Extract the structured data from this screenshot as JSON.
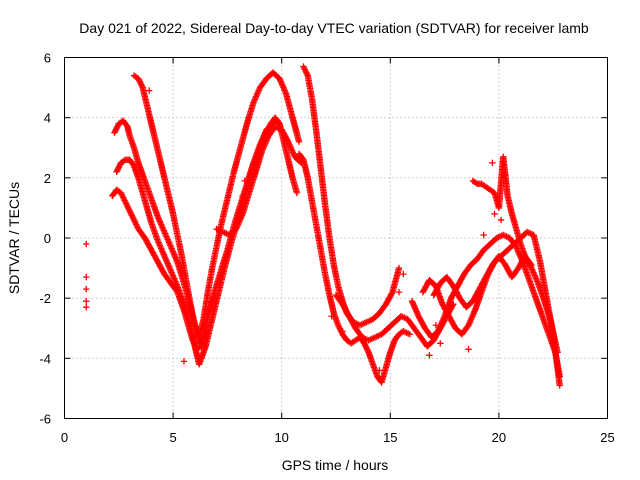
{
  "chart_data": {
    "type": "scatter",
    "title": "Day 021 of 2022, Sidereal Day-to-day VTEC variation (SDTVAR) for receiver lamb",
    "xlabel": "GPS time / hours",
    "ylabel": "SDTVAR / TECUs",
    "xlim": [
      0,
      25
    ],
    "ylim": [
      -6,
      6
    ],
    "xticks": [
      0,
      5,
      10,
      15,
      20,
      25
    ],
    "yticks": [
      -6,
      -4,
      -2,
      0,
      2,
      4,
      6
    ],
    "xtick_labels": [
      "0",
      "5",
      "10",
      "15",
      "20",
      "25"
    ],
    "ytick_labels": [
      "-6",
      "-4",
      "-2",
      "0",
      "2",
      "4",
      "6"
    ],
    "grid": true,
    "marker": "+",
    "series_color": "#ff0000",
    "series": [
      {
        "name": "isolated-points",
        "x": [
          1.0,
          1.0,
          1.0,
          1.0,
          1.0
        ],
        "y": [
          -0.2,
          -1.3,
          -1.7,
          -2.1,
          -2.3
        ]
      },
      {
        "name": "trace-a",
        "x": [
          2.3,
          2.5,
          2.7,
          2.9,
          3.0,
          3.2,
          3.4,
          3.6,
          3.8,
          4.0,
          4.3,
          4.6,
          4.9,
          5.2,
          5.5,
          5.7,
          5.9,
          6.1,
          6.2,
          6.4,
          6.6,
          6.9,
          7.2,
          7.5,
          7.8,
          8.1,
          8.4,
          8.7,
          9.0,
          9.3,
          9.6,
          9.8
        ],
        "y": [
          3.5,
          3.8,
          3.9,
          3.7,
          3.4,
          3.0,
          2.5,
          2.1,
          1.7,
          1.3,
          0.7,
          0.2,
          -0.3,
          -0.8,
          -1.5,
          -2.0,
          -2.6,
          -3.1,
          -3.5,
          -3.3,
          -2.6,
          -1.8,
          -1.1,
          -0.4,
          0.4,
          1.1,
          1.8,
          2.5,
          3.1,
          3.6,
          3.8,
          3.9
        ]
      },
      {
        "name": "trace-b",
        "x": [
          2.4,
          2.6,
          2.8,
          3.0,
          3.2,
          3.4,
          3.6,
          3.8,
          4.0,
          4.3,
          4.6,
          4.9,
          5.2,
          5.5,
          5.8,
          6.0,
          6.2,
          6.5,
          6.8,
          7.1,
          7.4,
          7.7,
          8.0,
          8.3,
          8.6,
          8.9,
          9.2,
          9.5,
          9.7,
          9.9,
          10.1,
          10.3,
          10.5,
          10.7
        ],
        "y": [
          2.2,
          2.5,
          2.6,
          2.6,
          2.4,
          2.0,
          1.5,
          1.0,
          0.5,
          -0.1,
          -0.6,
          -1.1,
          -1.6,
          -2.2,
          -2.9,
          -3.6,
          -4.2,
          -3.6,
          -2.7,
          -1.8,
          -0.9,
          -0.1,
          0.6,
          1.4,
          2.1,
          2.8,
          3.4,
          3.8,
          4.0,
          3.8,
          3.2,
          2.6,
          2.0,
          1.5
        ]
      },
      {
        "name": "trace-c",
        "x": [
          2.2,
          2.4,
          2.6,
          2.8,
          3.0,
          3.2,
          3.4,
          3.7,
          4.0,
          4.3,
          4.6,
          4.9,
          5.2,
          5.5,
          5.7,
          5.9,
          6.1,
          6.3,
          6.5
        ],
        "y": [
          1.4,
          1.6,
          1.5,
          1.2,
          0.9,
          0.6,
          0.3,
          0.0,
          -0.4,
          -0.8,
          -1.2,
          -1.5,
          -1.8,
          -2.4,
          -2.9,
          -3.4,
          -3.7,
          -3.6,
          -3.2
        ]
      },
      {
        "name": "trace-d",
        "x": [
          3.2,
          3.4,
          3.6,
          3.8,
          4.0,
          4.2,
          4.4,
          4.6,
          4.8,
          5.0,
          5.2,
          5.4,
          5.6,
          5.8,
          6.0,
          6.2,
          6.4,
          6.6,
          6.8,
          7.0,
          7.2,
          7.5,
          7.8,
          8.1,
          8.4,
          8.7,
          9.0,
          9.3,
          9.6,
          9.9,
          10.2,
          10.5,
          10.8
        ],
        "y": [
          5.4,
          5.3,
          5.0,
          4.4,
          3.8,
          3.2,
          2.6,
          2.0,
          1.4,
          0.8,
          0.1,
          -0.6,
          -1.4,
          -2.2,
          -2.9,
          -3.3,
          -2.7,
          -1.8,
          -1.0,
          -0.3,
          0.4,
          1.3,
          2.2,
          3.0,
          3.8,
          4.5,
          5.0,
          5.3,
          5.5,
          5.3,
          4.8,
          4.0,
          3.2
        ]
      },
      {
        "name": "trace-e",
        "x": [
          11.0,
          11.2,
          11.4,
          11.6,
          11.8,
          12.0,
          12.2,
          12.4,
          12.6,
          12.8,
          13.0,
          13.3,
          13.6,
          13.9,
          14.2,
          14.5,
          14.8,
          15.1,
          15.4
        ],
        "y": [
          5.7,
          5.4,
          4.6,
          3.5,
          2.3,
          1.1,
          0.0,
          -0.9,
          -1.6,
          -2.1,
          -2.5,
          -2.8,
          -2.9,
          -2.8,
          -2.7,
          -2.5,
          -2.2,
          -1.8,
          -1.0
        ]
      },
      {
        "name": "trace-f",
        "x": [
          10.8,
          11.0,
          11.2,
          11.4,
          11.6,
          11.8,
          12.0,
          12.2,
          12.4,
          12.6,
          12.8,
          13.0,
          13.2,
          13.4,
          13.6,
          13.8,
          14.0,
          14.2,
          14.4,
          14.6,
          14.8,
          15.0,
          15.2,
          15.4,
          15.6,
          15.9
        ],
        "y": [
          2.8,
          2.6,
          2.0,
          1.2,
          0.4,
          -0.4,
          -1.2,
          -1.9,
          -2.5,
          -2.9,
          -3.2,
          -3.4,
          -3.5,
          -3.4,
          -3.3,
          -3.5,
          -3.8,
          -4.2,
          -4.6,
          -4.8,
          -4.3,
          -3.8,
          -3.4,
          -3.2,
          -3.1,
          -3.2
        ]
      },
      {
        "name": "trace-g",
        "x": [
          7.0,
          7.3,
          7.6,
          7.9,
          8.2,
          8.5,
          8.8,
          9.1,
          9.4,
          9.7,
          10.0,
          10.3,
          10.6,
          10.9
        ],
        "y": [
          0.3,
          0.2,
          0.1,
          0.3,
          0.8,
          1.5,
          2.2,
          2.9,
          3.4,
          3.7,
          3.6,
          3.2,
          2.7,
          2.5
        ]
      },
      {
        "name": "trace-h",
        "x": [
          12.5,
          12.8,
          13.1,
          13.4,
          13.7,
          14.0,
          14.3,
          14.6,
          14.9,
          15.2,
          15.5,
          15.8,
          16.1,
          16.4,
          16.7,
          17.0,
          17.3,
          17.6,
          17.9
        ],
        "y": [
          -1.9,
          -2.2,
          -2.6,
          -3.0,
          -3.3,
          -3.4,
          -3.3,
          -3.2,
          -3.0,
          -2.8,
          -2.6,
          -2.7,
          -3.0,
          -3.3,
          -3.6,
          -3.4,
          -3.0,
          -2.6,
          -2.2
        ]
      },
      {
        "name": "trace-i",
        "x": [
          16.0,
          16.3,
          16.6,
          16.9,
          17.2,
          17.5,
          17.8,
          18.1,
          18.4,
          18.7,
          19.0,
          19.3,
          19.6,
          19.9,
          20.2,
          20.5,
          20.8,
          21.1,
          21.4,
          21.7,
          22.0,
          22.3,
          22.6,
          22.8
        ],
        "y": [
          -2.1,
          -2.6,
          -3.0,
          -3.3,
          -3.1,
          -2.6,
          -2.0,
          -1.6,
          -1.2,
          -0.9,
          -0.7,
          -0.4,
          -0.2,
          0.0,
          0.1,
          0.0,
          -0.3,
          -0.8,
          -1.4,
          -2.0,
          -2.6,
          -3.2,
          -3.8,
          -4.6
        ]
      },
      {
        "name": "trace-j",
        "x": [
          16.5,
          16.8,
          17.1,
          17.4,
          17.7,
          18.0,
          18.3,
          18.6,
          18.9,
          19.2,
          19.5,
          19.8,
          20.1,
          20.4,
          20.7,
          21.0,
          21.3,
          21.6,
          21.9,
          22.2,
          22.5,
          22.8
        ],
        "y": [
          -1.8,
          -1.4,
          -1.6,
          -2.2,
          -2.6,
          -3.0,
          -3.2,
          -2.9,
          -2.4,
          -1.8,
          -1.2,
          -0.8,
          -0.6,
          -0.4,
          -0.2,
          0.0,
          0.2,
          0.1,
          -0.8,
          -2.0,
          -3.2,
          -4.9
        ]
      },
      {
        "name": "trace-k",
        "x": [
          18.8,
          19.0,
          19.2,
          19.4,
          19.6,
          19.8,
          20.0,
          20.2,
          20.4,
          20.6,
          20.8,
          21.0,
          21.2,
          21.5,
          21.8,
          22.1,
          22.4,
          22.7
        ],
        "y": [
          1.9,
          1.8,
          1.8,
          1.7,
          1.6,
          1.5,
          1.0,
          2.7,
          1.4,
          0.8,
          0.3,
          -0.2,
          -0.6,
          -1.0,
          -1.5,
          -2.1,
          -2.8,
          -3.8
        ]
      },
      {
        "name": "trace-l",
        "x": [
          17.0,
          17.3,
          17.6,
          17.9,
          18.2,
          18.5,
          18.8,
          19.1,
          19.4,
          19.7,
          20.0,
          20.3,
          20.6,
          20.9,
          21.2,
          21.5
        ],
        "y": [
          -1.9,
          -1.5,
          -1.3,
          -1.6,
          -2.0,
          -2.3,
          -2.1,
          -1.7,
          -1.3,
          -0.9,
          -0.6,
          -0.9,
          -1.3,
          -1.0,
          -0.6,
          -0.9
        ]
      },
      {
        "name": "scattered-points",
        "x": [
          19.7,
          19.8,
          18.6,
          20.3,
          20.1,
          19.3,
          17.3,
          17.1,
          16.8,
          15.6,
          15.4,
          14.5,
          12.8,
          12.3,
          8.3,
          8.2,
          5.5,
          3.9
        ],
        "y": [
          2.5,
          0.8,
          -3.7,
          2.1,
          0.6,
          0.1,
          -3.5,
          -2.9,
          -3.9,
          -1.2,
          -1.8,
          -4.4,
          -3.1,
          -2.6,
          1.9,
          1.4,
          -4.1,
          4.9
        ]
      }
    ]
  }
}
